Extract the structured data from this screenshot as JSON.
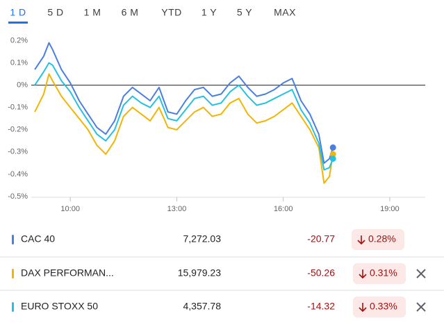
{
  "tabs": [
    "1 D",
    "5 D",
    "1 M",
    "6 M",
    "YTD",
    "1 Y",
    "5 Y",
    "MAX"
  ],
  "selected_tab": 0,
  "chart_data": {
    "type": "line",
    "x": [
      9,
      9.25,
      9.4,
      9.5,
      9.75,
      10,
      10.25,
      10.5,
      10.75,
      11,
      11.25,
      11.5,
      11.75,
      12,
      12.25,
      12.5,
      12.75,
      13,
      13.25,
      13.5,
      13.75,
      14,
      14.25,
      14.5,
      14.75,
      15,
      15.25,
      15.5,
      15.75,
      16,
      16.25,
      16.5,
      16.75,
      17,
      17.15,
      17.3,
      17.4
    ],
    "series": [
      {
        "name": "CAC 40",
        "color": "#4a7ee0",
        "values": [
          0.07,
          0.13,
          0.19,
          0.16,
          0.07,
          0.01,
          -0.07,
          -0.13,
          -0.19,
          -0.22,
          -0.16,
          -0.05,
          -0.01,
          -0.04,
          -0.07,
          -0.01,
          -0.12,
          -0.13,
          -0.07,
          -0.02,
          -0.01,
          -0.05,
          -0.04,
          0.01,
          0.04,
          -0.01,
          -0.05,
          -0.04,
          -0.02,
          0.01,
          0.03,
          -0.07,
          -0.13,
          -0.22,
          -0.35,
          -0.33,
          -0.28
        ]
      },
      {
        "name": "DAX PERFORMAN...",
        "color": "#f4b400",
        "values": [
          -0.12,
          -0.04,
          0.05,
          0.02,
          -0.05,
          -0.1,
          -0.15,
          -0.2,
          -0.27,
          -0.31,
          -0.25,
          -0.14,
          -0.1,
          -0.13,
          -0.16,
          -0.1,
          -0.19,
          -0.2,
          -0.16,
          -0.12,
          -0.1,
          -0.14,
          -0.13,
          -0.08,
          -0.06,
          -0.13,
          -0.17,
          -0.16,
          -0.14,
          -0.11,
          -0.08,
          -0.14,
          -0.2,
          -0.28,
          -0.44,
          -0.41,
          -0.31
        ]
      },
      {
        "name": "EURO STOXX 50",
        "color": "#24c1e0",
        "values": [
          0.0,
          0.06,
          0.1,
          0.09,
          0.02,
          -0.03,
          -0.1,
          -0.16,
          -0.22,
          -0.25,
          -0.2,
          -0.09,
          -0.05,
          -0.08,
          -0.1,
          -0.05,
          -0.15,
          -0.16,
          -0.11,
          -0.06,
          -0.05,
          -0.09,
          -0.08,
          -0.03,
          0.0,
          -0.05,
          -0.09,
          -0.08,
          -0.06,
          -0.04,
          -0.02,
          -0.11,
          -0.17,
          -0.26,
          -0.38,
          -0.37,
          -0.33
        ]
      }
    ],
    "xlim": [
      8.9,
      20.0
    ],
    "xticks": [
      {
        "value": 10,
        "label": "10:00"
      },
      {
        "value": 13,
        "label": "13:00"
      },
      {
        "value": 16,
        "label": "16:00"
      },
      {
        "value": 19,
        "label": "19:00"
      }
    ],
    "ylim": [
      -0.5,
      0.22
    ],
    "yticks": [
      {
        "value": 0.2,
        "label": "0.2%"
      },
      {
        "value": 0.1,
        "label": "0.1%"
      },
      {
        "value": 0,
        "label": "0%"
      },
      {
        "value": -0.1,
        "label": "-0.1%"
      },
      {
        "value": -0.2,
        "label": "-0.2%"
      },
      {
        "value": -0.3,
        "label": "-0.3%"
      },
      {
        "value": -0.4,
        "label": "-0.4%"
      },
      {
        "value": -0.5,
        "label": "-0.5%"
      }
    ],
    "reference_line": 0
  },
  "table": {
    "rows": [
      {
        "name": "CAC 40",
        "price": "7,272.03",
        "change": "-20.77",
        "percent": "0.28%",
        "removable": false
      },
      {
        "name": "DAX PERFORMAN...",
        "price": "15,979.23",
        "change": "-50.26",
        "percent": "0.31%",
        "removable": true
      },
      {
        "name": "EURO STOXX 50",
        "price": "4,357.78",
        "change": "-14.32",
        "percent": "0.33%",
        "removable": true
      }
    ]
  }
}
